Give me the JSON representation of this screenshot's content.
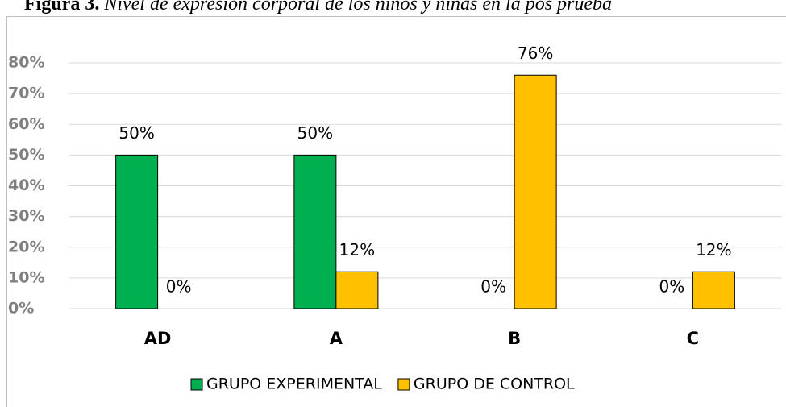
{
  "chart_data": {
    "type": "bar",
    "title": "Figura 3.",
    "subtitle": "Nivel de expresión corporal de los niños y niñas en la pos prueba",
    "categories": [
      "AD",
      "A",
      "B",
      "C"
    ],
    "series": [
      {
        "name": "GRUPO EXPERIMENTAL",
        "color": "#00b050",
        "values": [
          50,
          50,
          0,
          0
        ],
        "value_labels": [
          "50%",
          "50%",
          "0%",
          "0%"
        ]
      },
      {
        "name": "GRUPO DE CONTROL",
        "color": "#ffc000",
        "values": [
          0,
          12,
          76,
          12
        ],
        "value_labels": [
          "0%",
          "12%",
          "76%",
          "12%"
        ]
      }
    ],
    "ylim": [
      0,
      80
    ],
    "yticks": [
      {
        "value": 0,
        "label": "0%"
      },
      {
        "value": 10,
        "label": "10%"
      },
      {
        "value": 20,
        "label": "20%"
      },
      {
        "value": 30,
        "label": "30%"
      },
      {
        "value": 40,
        "label": "40%"
      },
      {
        "value": 50,
        "label": "50%"
      },
      {
        "value": 60,
        "label": "60%"
      },
      {
        "value": 70,
        "label": "70%"
      },
      {
        "value": 80,
        "label": "80%"
      }
    ],
    "grid": true,
    "legend": "bottom"
  }
}
